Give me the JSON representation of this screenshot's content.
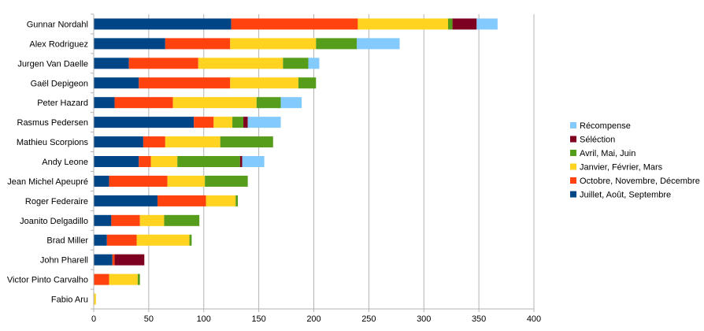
{
  "chart_data": {
    "type": "bar",
    "orientation": "horizontal",
    "stacked": true,
    "title": "",
    "xlabel": "",
    "ylabel": "",
    "xlim": [
      0,
      400
    ],
    "x_ticks": [
      "0",
      "50",
      "100",
      "150",
      "200",
      "250",
      "300",
      "350",
      "400"
    ],
    "grid": "vertical",
    "legend_position": "right",
    "categories": [
      "Gunnar Nordahl",
      "Alex Rodriguez",
      "Jurgen Van Daelle",
      "Gaël Depigeon",
      "Peter Hazard",
      "Rasmus Pedersen",
      "Mathieu Scorpions",
      "Andy Leone",
      "Jean Michel Apeupré",
      "Roger Federaire",
      "Joanito Delgadillo",
      "Brad Miller",
      "John Pharell",
      "Victor Pinto Carvalho",
      "Fabio Aru"
    ],
    "series": [
      {
        "name": "Juillet, Août, Septembre",
        "color": "#004586",
        "values": [
          125,
          65,
          32,
          41,
          19,
          91,
          45,
          41,
          14,
          58,
          16,
          12,
          17,
          0,
          0
        ]
      },
      {
        "name": "Octobre, Novembre, Décembre",
        "color": "#ff420e",
        "values": [
          115,
          59,
          63,
          83,
          53,
          18,
          20,
          11,
          53,
          44,
          26,
          27,
          2,
          14,
          0
        ]
      },
      {
        "name": "Janvier, Février, Mars",
        "color": "#ffd320",
        "values": [
          82,
          78,
          77,
          62,
          76,
          17,
          50,
          24,
          34,
          27,
          22,
          48,
          0,
          26,
          2
        ]
      },
      {
        "name": "Avril, Mai, Juin",
        "color": "#579d1c",
        "values": [
          4,
          37,
          23,
          16,
          22,
          10,
          48,
          57,
          39,
          2,
          32,
          2,
          0,
          2,
          0
        ]
      },
      {
        "name": "Séléction",
        "color": "#7e0021",
        "values": [
          22,
          0,
          0,
          0,
          0,
          4,
          0,
          2,
          0,
          0,
          0,
          0,
          27,
          0,
          0
        ]
      },
      {
        "name": "Récompense",
        "color": "#83caff",
        "values": [
          19,
          39,
          10,
          0,
          19,
          30,
          0,
          20,
          0,
          0,
          0,
          0,
          0,
          0,
          0
        ]
      }
    ],
    "legend_order": [
      "Récompense",
      "Séléction",
      "Avril, Mai, Juin",
      "Janvier, Février, Mars",
      "Octobre, Novembre, Décembre",
      "Juillet, Août, Septembre"
    ]
  }
}
